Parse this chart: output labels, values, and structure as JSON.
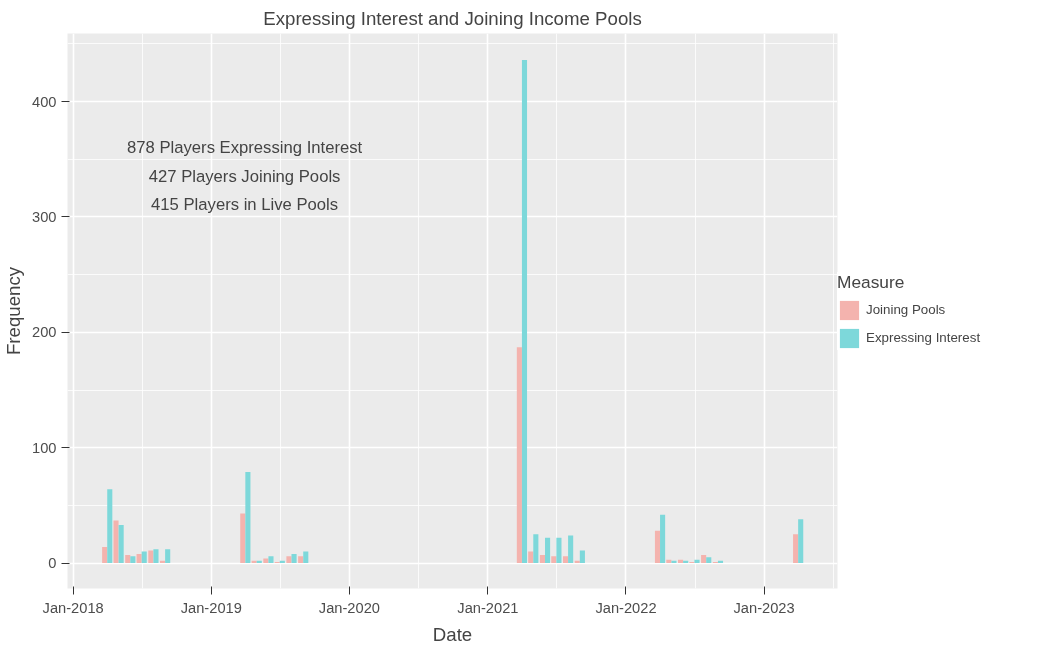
{
  "chart_data": {
    "type": "bar",
    "title": "Expressing Interest and Joining Income Pools",
    "xlabel": "Date",
    "ylabel": "Frequency",
    "legend_title": "Measure",
    "annotations": [
      "878 Players Expressing Interest",
      "427 Players Joining Pools",
      "415 Players in Live Pools"
    ],
    "x": [
      "2018-04",
      "2018-05",
      "2018-06",
      "2018-07",
      "2018-08",
      "2018-09",
      "2019-04",
      "2019-05",
      "2019-06",
      "2019-07",
      "2019-08",
      "2019-09",
      "2021-04",
      "2021-05",
      "2021-06",
      "2021-07",
      "2021-08",
      "2021-09",
      "2022-04",
      "2022-05",
      "2022-06",
      "2022-07",
      "2022-08",
      "2022-09",
      "2023-04"
    ],
    "series": [
      {
        "name": "Joining Pools",
        "color": "#f4b3ae",
        "values": [
          14,
          37,
          7,
          8,
          11,
          2,
          43,
          2,
          4,
          1,
          6,
          6,
          187,
          10,
          7,
          6,
          6,
          2,
          28,
          3,
          3,
          1,
          7,
          1,
          25
        ]
      },
      {
        "name": "Expressing Interest",
        "color": "#7dd8da",
        "values": [
          64,
          33,
          6,
          10,
          12,
          12,
          79,
          2,
          6,
          2,
          8,
          10,
          436,
          25,
          22,
          22,
          24,
          11,
          42,
          2,
          2,
          3,
          5,
          2,
          38
        ]
      }
    ],
    "xlim": [
      "2017-12-17",
      "2023-07-14"
    ],
    "ylim": [
      -22,
      459
    ],
    "xticks": [
      {
        "value": "2018-01",
        "label": "Jan-2018"
      },
      {
        "value": "2019-01",
        "label": "Jan-2019"
      },
      {
        "value": "2020-01",
        "label": "Jan-2020"
      },
      {
        "value": "2021-01",
        "label": "Jan-2021"
      },
      {
        "value": "2022-01",
        "label": "Jan-2022"
      },
      {
        "value": "2023-01",
        "label": "Jan-2023"
      }
    ],
    "yticks": [
      0,
      100,
      200,
      300,
      400
    ],
    "grid": true,
    "legend": "right"
  }
}
